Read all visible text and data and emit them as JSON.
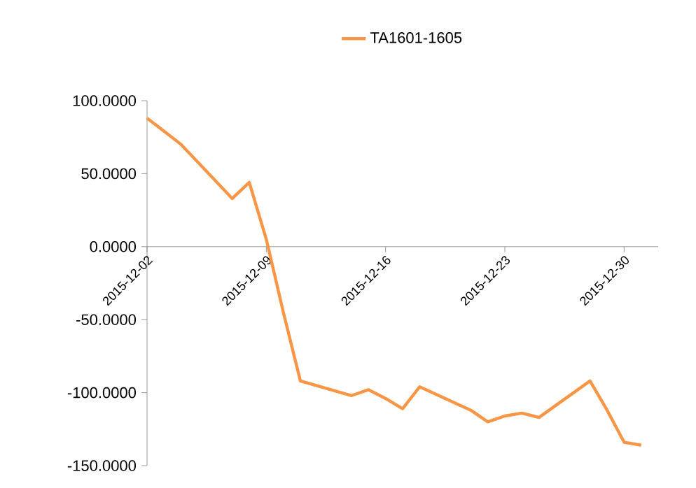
{
  "chart_data": {
    "type": "line",
    "x": [
      "2015-12-02",
      "2015-12-03",
      "2015-12-04",
      "2015-12-07",
      "2015-12-08",
      "2015-12-09",
      "2015-12-10",
      "2015-12-11",
      "2015-12-14",
      "2015-12-15",
      "2015-12-16",
      "2015-12-17",
      "2015-12-18",
      "2015-12-21",
      "2015-12-22",
      "2015-12-23",
      "2015-12-24",
      "2015-12-25",
      "2015-12-28",
      "2015-12-29",
      "2015-12-30",
      "2015-12-31"
    ],
    "series": [
      {
        "name": "TA1601-1605",
        "color": "#f79646",
        "values": [
          88,
          79,
          70,
          33,
          44,
          5,
          -45,
          -92,
          -102,
          -98,
          -104,
          -111,
          -96,
          -112,
          -120,
          -116,
          -114,
          -117,
          -92,
          -112,
          -134,
          -136
        ]
      }
    ],
    "xlim": [
      "2015-12-02",
      "2016-01-01"
    ],
    "xticks": [
      "2015-12-02",
      "2015-12-09",
      "2015-12-16",
      "2015-12-23",
      "2015-12-30"
    ],
    "ylim": [
      -150,
      100
    ],
    "yticks": [
      {
        "value": 100,
        "label": "100.0000"
      },
      {
        "value": 50,
        "label": "50.0000"
      },
      {
        "value": 0,
        "label": "0.0000"
      },
      {
        "value": -50,
        "label": "-50.0000"
      },
      {
        "value": -100,
        "label": "-100.0000"
      },
      {
        "value": -150,
        "label": "-150.0000"
      }
    ],
    "legend": "top",
    "marker": "none",
    "line_style": "solid"
  }
}
